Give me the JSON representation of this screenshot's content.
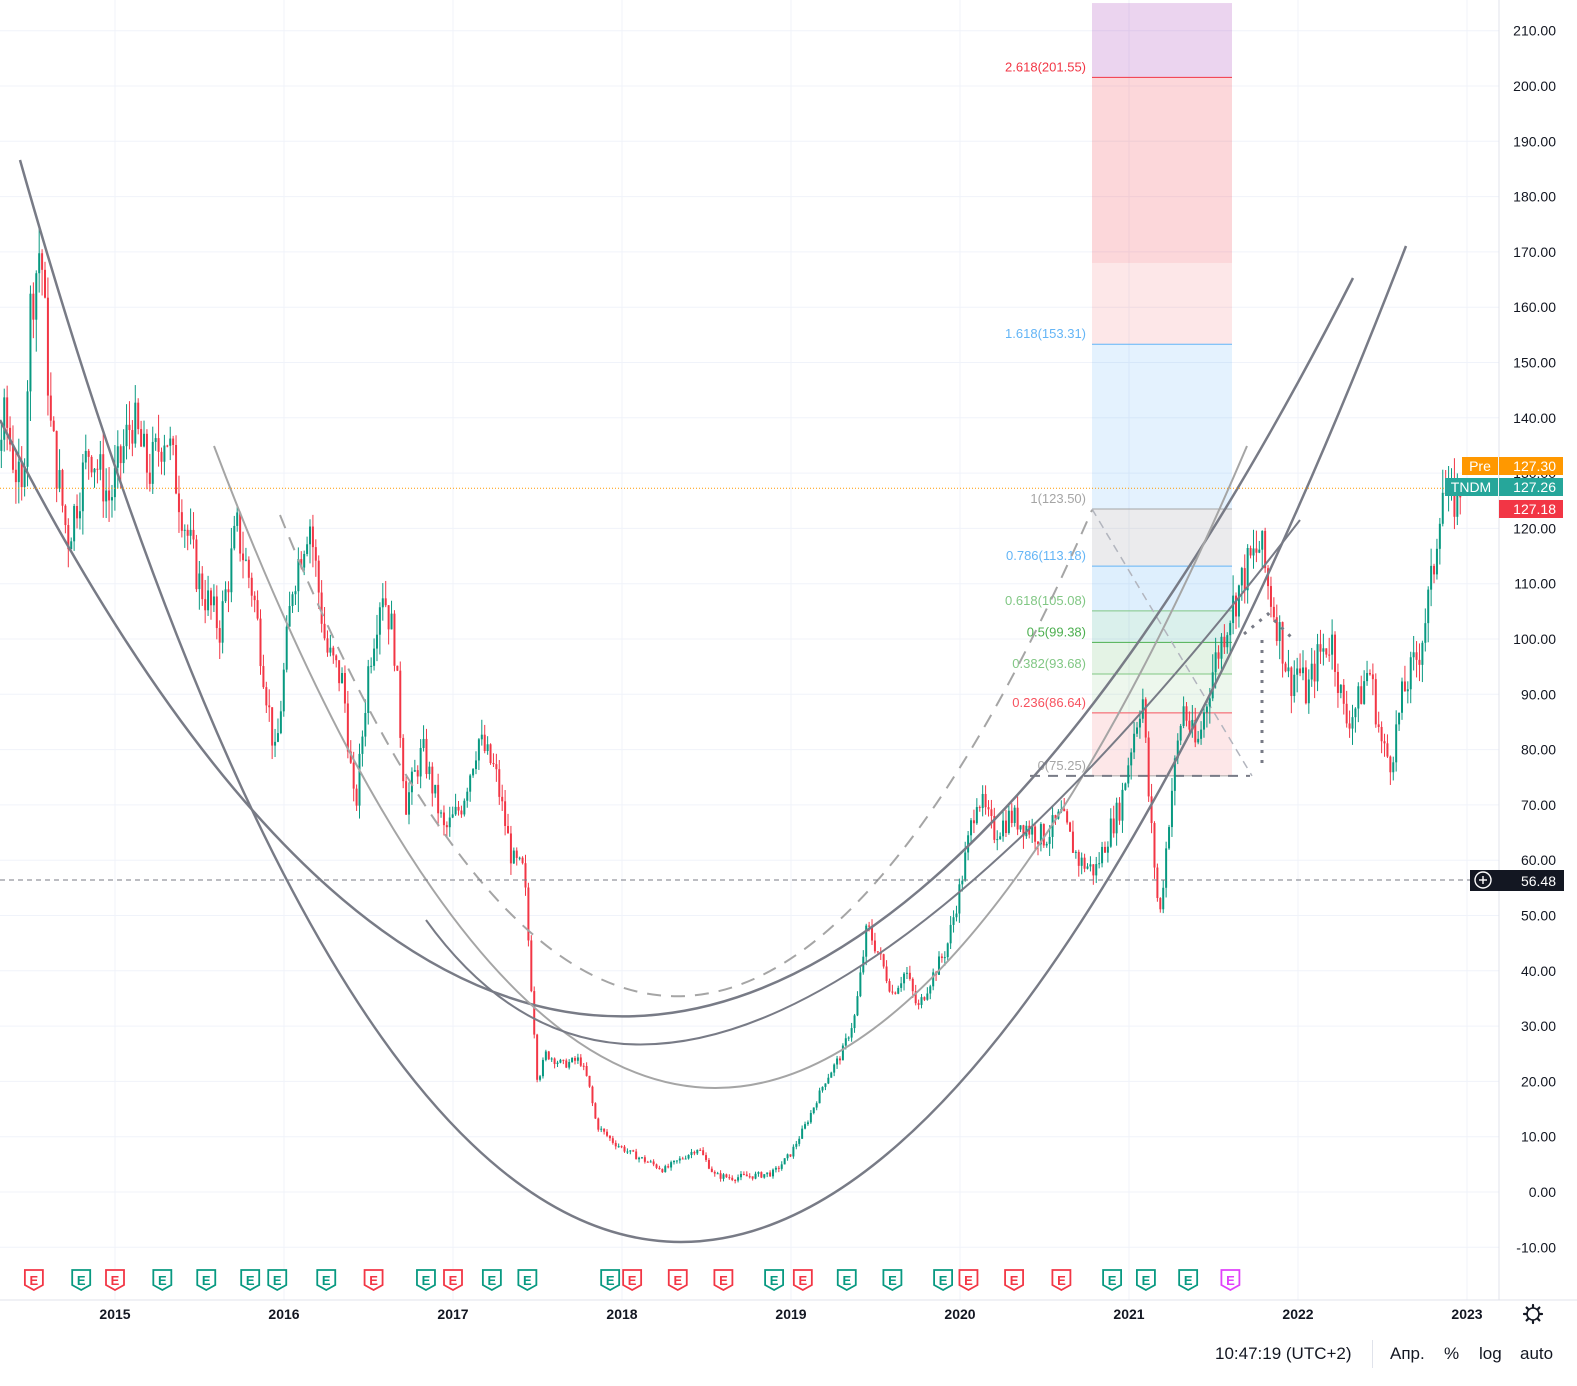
{
  "chart_data": {
    "type": "candlestick",
    "symbol": "TNDM",
    "y_range": [
      -13,
      215
    ],
    "y_ticks": [
      -10,
      0,
      10,
      20,
      30,
      40,
      50,
      60,
      70,
      80,
      90,
      100,
      110,
      120,
      130,
      140,
      150,
      160,
      170,
      180,
      190,
      200,
      210
    ],
    "y_tick_labels": [
      "-10.00",
      "0.00",
      "10.00",
      "20.00",
      "30.00",
      "40.00",
      "50.00",
      "60.00",
      "70.00",
      "80.00",
      "90.00",
      "100.00",
      "110.00",
      "120.00",
      "130.00",
      "140.00",
      "150.00",
      "160.00",
      "170.00",
      "180.00",
      "190.00",
      "200.00",
      "210.00"
    ],
    "x_range": [
      2014.0,
      2023.55
    ],
    "x_ticks": [
      2015,
      2016,
      2017,
      2018,
      2019,
      2020,
      2021,
      2022,
      2023
    ],
    "x_tick_labels": [
      "2015",
      "2016",
      "2017",
      "2018",
      "2019",
      "2020",
      "2021",
      "2022",
      "2023"
    ],
    "price_path": [
      [
        2014.0,
        160
      ],
      [
        2014.1,
        168
      ],
      [
        2014.22,
        122
      ],
      [
        2014.35,
        140
      ],
      [
        2014.45,
        125
      ],
      [
        2014.5,
        160
      ],
      [
        2014.56,
        172
      ],
      [
        2014.62,
        138
      ],
      [
        2014.72,
        118
      ],
      [
        2014.85,
        135
      ],
      [
        2014.97,
        125
      ],
      [
        2015.1,
        140
      ],
      [
        2015.2,
        130
      ],
      [
        2015.3,
        138
      ],
      [
        2015.42,
        120
      ],
      [
        2015.5,
        110
      ],
      [
        2015.62,
        102
      ],
      [
        2015.72,
        120
      ],
      [
        2015.82,
        108
      ],
      [
        2015.95,
        78
      ],
      [
        2016.05,
        110
      ],
      [
        2016.15,
        122
      ],
      [
        2016.25,
        98
      ],
      [
        2016.35,
        92
      ],
      [
        2016.42,
        68
      ],
      [
        2016.5,
        95
      ],
      [
        2016.58,
        110
      ],
      [
        2016.65,
        100
      ],
      [
        2016.72,
        70
      ],
      [
        2016.82,
        80
      ],
      [
        2016.95,
        65
      ],
      [
        2017.05,
        70
      ],
      [
        2017.15,
        82
      ],
      [
        2017.25,
        76
      ],
      [
        2017.35,
        60
      ],
      [
        2017.42,
        58
      ],
      [
        2017.5,
        20
      ],
      [
        2017.55,
        25
      ],
      [
        2017.65,
        23
      ],
      [
        2017.75,
        24
      ],
      [
        2017.8,
        20
      ],
      [
        2017.85,
        12
      ],
      [
        2017.95,
        9
      ],
      [
        2018.05,
        7
      ],
      [
        2018.15,
        5.5
      ],
      [
        2018.25,
        4
      ],
      [
        2018.35,
        6
      ],
      [
        2018.45,
        8
      ],
      [
        2018.55,
        3
      ],
      [
        2018.65,
        2.6
      ],
      [
        2018.8,
        3
      ],
      [
        2018.9,
        3.5
      ],
      [
        2019.0,
        7
      ],
      [
        2019.1,
        13
      ],
      [
        2019.2,
        20
      ],
      [
        2019.3,
        25
      ],
      [
        2019.38,
        32
      ],
      [
        2019.45,
        48
      ],
      [
        2019.52,
        43
      ],
      [
        2019.6,
        36
      ],
      [
        2019.68,
        40
      ],
      [
        2019.75,
        33
      ],
      [
        2019.82,
        38
      ],
      [
        2019.92,
        44
      ],
      [
        2020.0,
        55
      ],
      [
        2020.1,
        72
      ],
      [
        2020.2,
        65
      ],
      [
        2020.3,
        68
      ],
      [
        2020.4,
        66
      ],
      [
        2020.5,
        64
      ],
      [
        2020.6,
        68
      ],
      [
        2020.7,
        60
      ],
      [
        2020.8,
        58
      ],
      [
        2020.88,
        65
      ],
      [
        2020.95,
        70
      ],
      [
        2021.02,
        82
      ],
      [
        2021.08,
        90
      ],
      [
        2021.12,
        70
      ],
      [
        2021.18,
        49
      ],
      [
        2021.25,
        72
      ],
      [
        2021.32,
        88
      ],
      [
        2021.4,
        80
      ],
      [
        2021.5,
        95
      ],
      [
        2021.6,
        105
      ],
      [
        2021.7,
        113
      ],
      [
        2021.78,
        117
      ],
      [
        2021.82,
        110
      ],
      [
        2021.9,
        100
      ],
      [
        2021.95,
        92
      ],
      [
        2022.0,
        95
      ],
      [
        2022.05,
        90
      ],
      [
        2022.12,
        97
      ],
      [
        2022.2,
        100
      ],
      [
        2022.28,
        85
      ],
      [
        2022.35,
        88
      ],
      [
        2022.42,
        95
      ],
      [
        2022.5,
        80
      ],
      [
        2022.55,
        78
      ],
      [
        2022.62,
        90
      ],
      [
        2022.72,
        98
      ],
      [
        2022.8,
        112
      ],
      [
        2022.85,
        128
      ],
      [
        2022.9,
        124
      ],
      [
        2022.96,
        127.26
      ]
    ],
    "fibonacci": {
      "levels": [
        {
          "ratio": 2.618,
          "label": "2.618(201.55)",
          "price": 201.55,
          "color": "#f23645"
        },
        {
          "ratio": 1.618,
          "label": "1.618(153.31)",
          "price": 153.31,
          "color": "#64b5f6"
        },
        {
          "ratio": 1,
          "label": "1(123.50)",
          "price": 123.5,
          "color": "#a5a5a5"
        },
        {
          "ratio": 0.786,
          "label": "0.786(113.18)",
          "price": 113.18,
          "color": "#64b5f6"
        },
        {
          "ratio": 0.618,
          "label": "0.618(105.08)",
          "price": 105.08,
          "color": "#81c784"
        },
        {
          "ratio": 0.5,
          "label": "0.5(99.38)",
          "price": 99.38,
          "color": "#4caf50"
        },
        {
          "ratio": 0.382,
          "label": "0.382(93.68)",
          "price": 93.68,
          "color": "#81c784"
        },
        {
          "ratio": 0.236,
          "label": "0.236(86.64)",
          "price": 86.64,
          "color": "#f7525f"
        },
        {
          "ratio": 0,
          "label": "0(75.25)",
          "price": 75.25,
          "color": "#a5a5a5"
        }
      ]
    },
    "price_labels": [
      {
        "tag": "Pre",
        "value": "127.30",
        "color": "#ff9800"
      },
      {
        "tag": "TNDM",
        "value": "127.26",
        "color": "#26a69a"
      },
      {
        "tag": "",
        "value": "127.18",
        "color": "#f23645"
      }
    ],
    "crosshair_value": "56.48",
    "earnings_markers": [
      {
        "year": 2014.02,
        "color": "#f23645"
      },
      {
        "year": 2014.25,
        "color": "#089981"
      },
      {
        "year": 2014.52,
        "color": "#f23645"
      },
      {
        "year": 2014.8,
        "color": "#089981"
      },
      {
        "year": 2015.0,
        "color": "#f23645"
      },
      {
        "year": 2015.28,
        "color": "#089981"
      },
      {
        "year": 2015.54,
        "color": "#089981"
      },
      {
        "year": 2015.8,
        "color": "#089981"
      },
      {
        "year": 2015.96,
        "color": "#089981"
      },
      {
        "year": 2016.25,
        "color": "#089981"
      },
      {
        "year": 2016.53,
        "color": "#f23645"
      },
      {
        "year": 2016.84,
        "color": "#089981"
      },
      {
        "year": 2017.0,
        "color": "#f23645"
      },
      {
        "year": 2017.23,
        "color": "#089981"
      },
      {
        "year": 2017.44,
        "color": "#089981"
      },
      {
        "year": 2017.93,
        "color": "#089981"
      },
      {
        "year": 2018.06,
        "color": "#f23645"
      },
      {
        "year": 2018.33,
        "color": "#f23645"
      },
      {
        "year": 2018.6,
        "color": "#f23645"
      },
      {
        "year": 2018.9,
        "color": "#089981"
      },
      {
        "year": 2019.07,
        "color": "#f23645"
      },
      {
        "year": 2019.33,
        "color": "#089981"
      },
      {
        "year": 2019.6,
        "color": "#089981"
      },
      {
        "year": 2019.9,
        "color": "#089981"
      },
      {
        "year": 2020.05,
        "color": "#f23645"
      },
      {
        "year": 2020.32,
        "color": "#f23645"
      },
      {
        "year": 2020.6,
        "color": "#f23645"
      },
      {
        "year": 2020.9,
        "color": "#089981"
      },
      {
        "year": 2021.1,
        "color": "#089981"
      },
      {
        "year": 2021.35,
        "color": "#089981"
      },
      {
        "year": 2021.6,
        "color": "#e040fb"
      }
    ],
    "grid": true,
    "time_label": "10:47:19 (UTC+2)",
    "scale_options": [
      "Апр.",
      "%",
      "log",
      "auto"
    ]
  }
}
